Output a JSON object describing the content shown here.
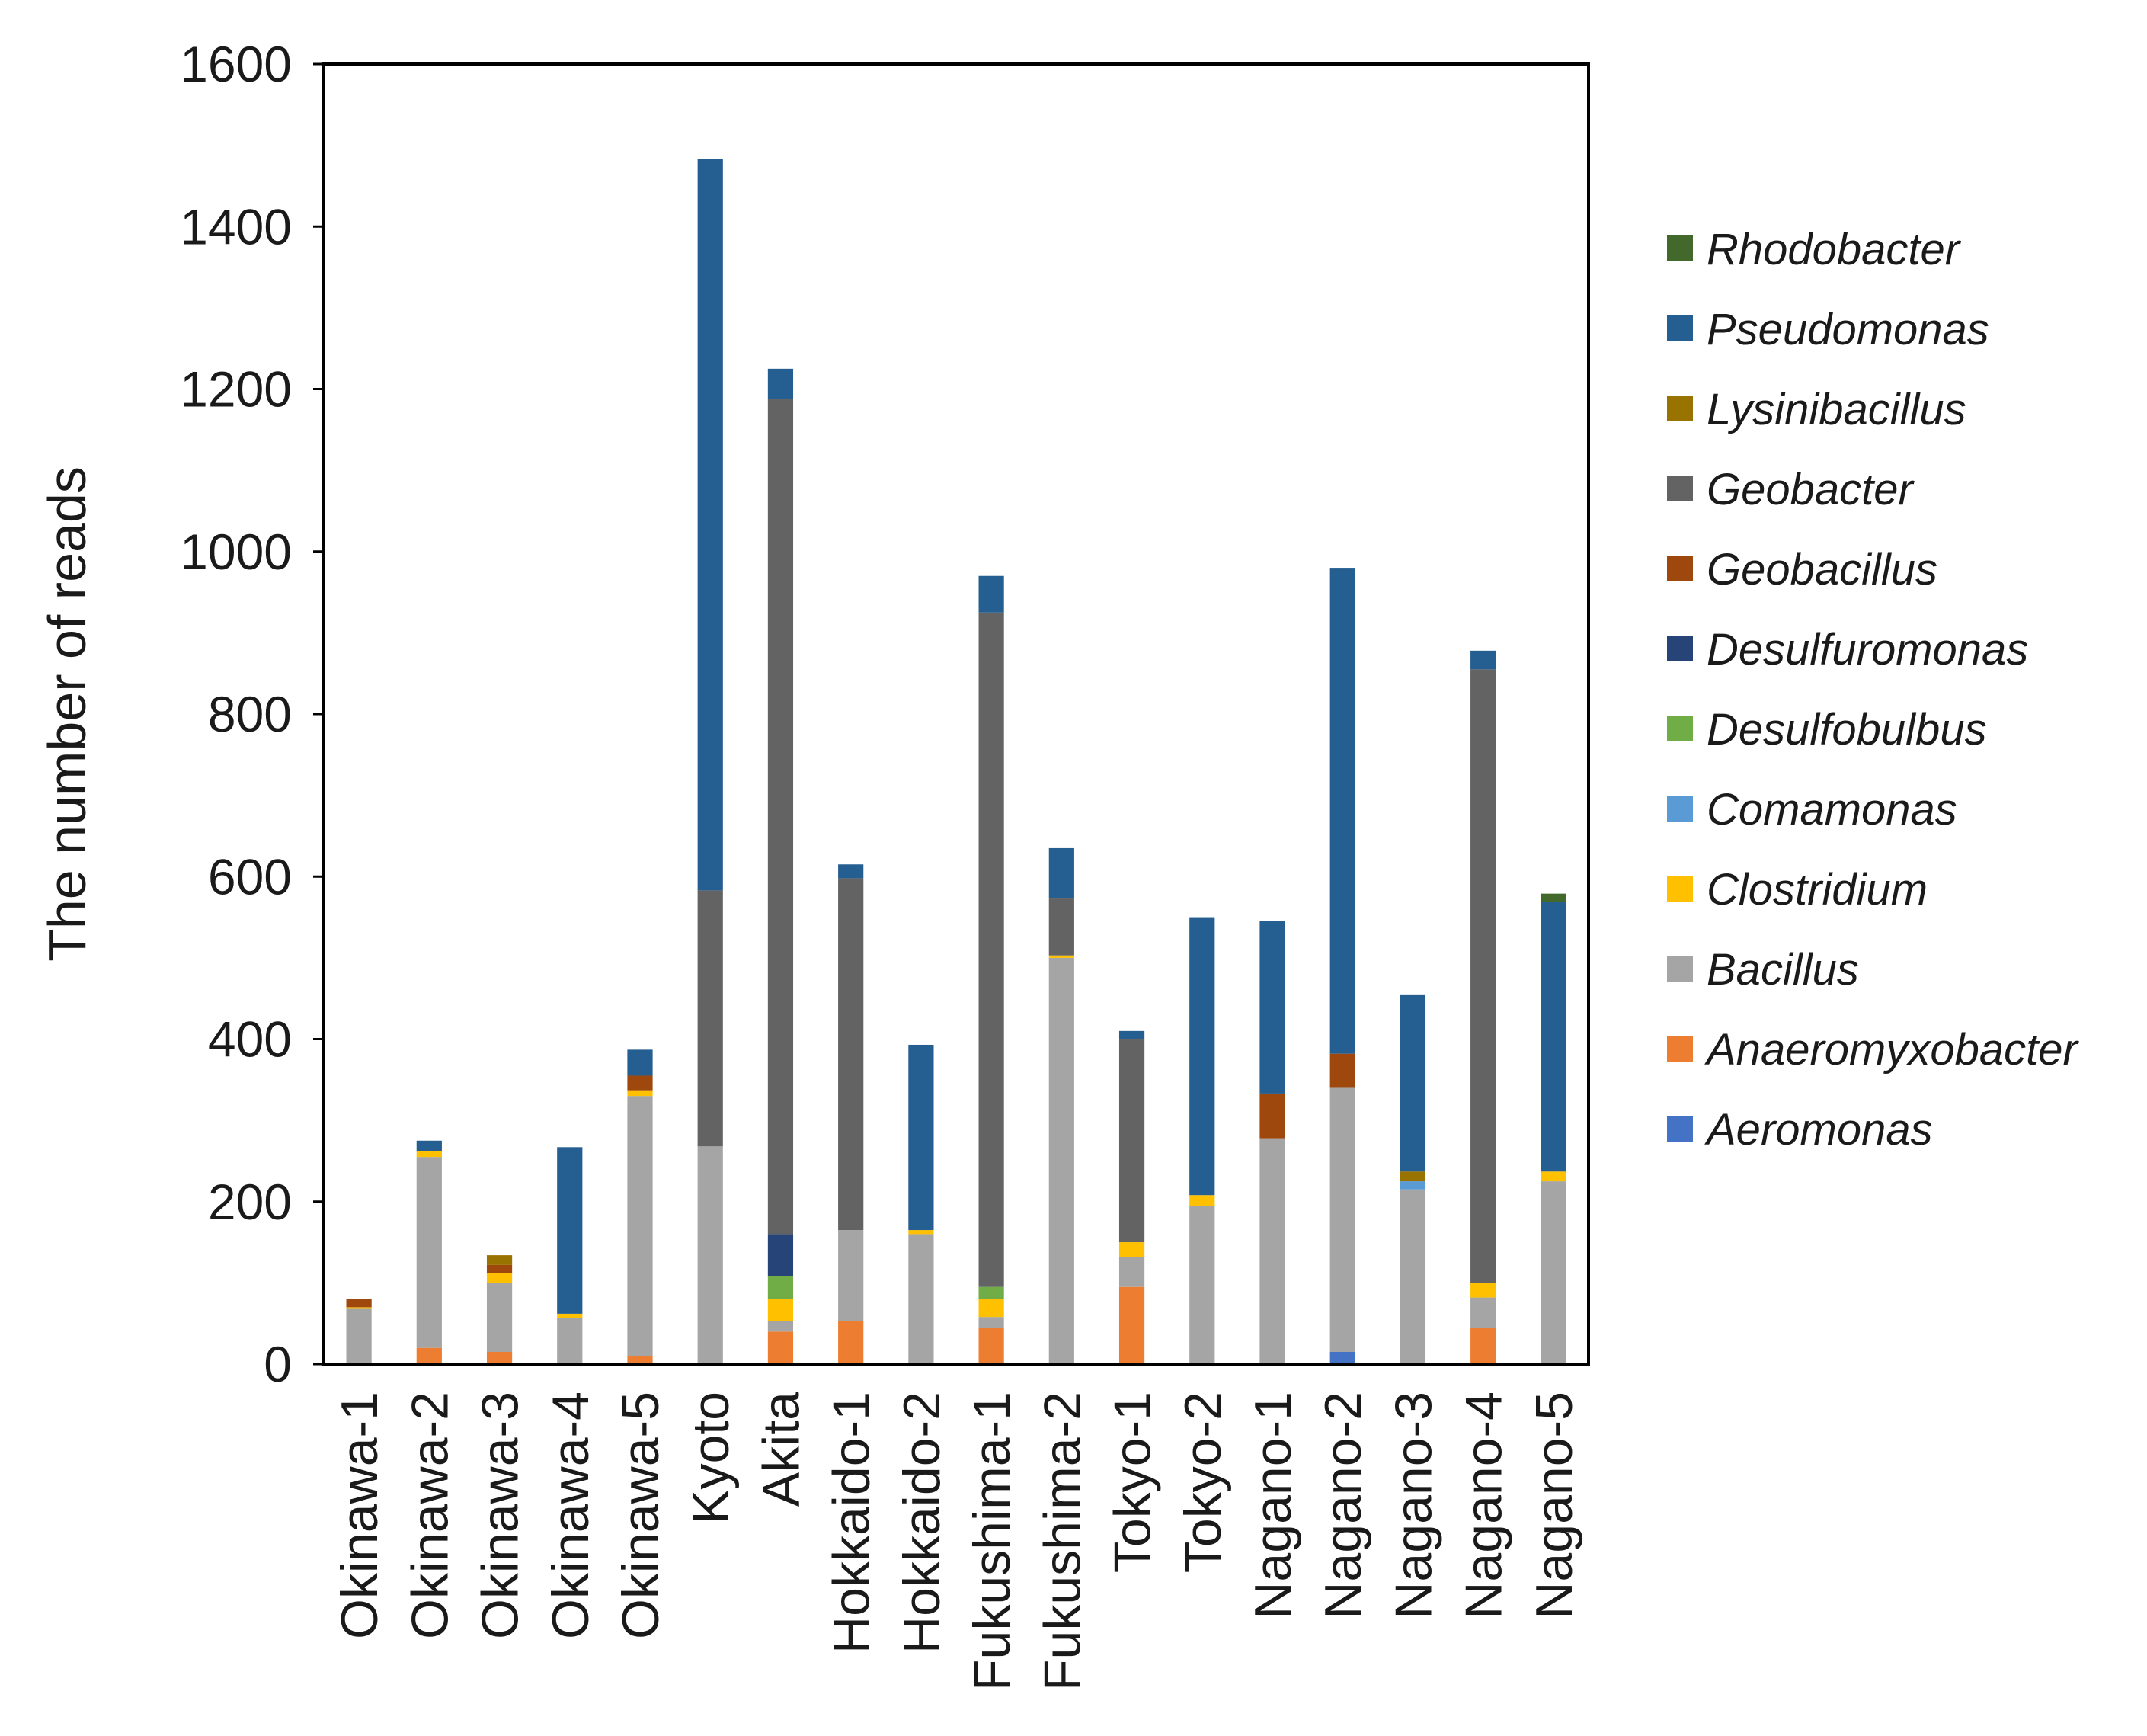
{
  "chart_data": {
    "type": "bar",
    "stacked": true,
    "title": "",
    "xlabel": "",
    "ylabel": "The number of reads",
    "ylim": [
      0,
      1600
    ],
    "yticks": [
      0,
      200,
      400,
      600,
      800,
      1000,
      1200,
      1400,
      1600
    ],
    "grid": false,
    "legend_position": "right",
    "categories": [
      "Okinawa-1",
      "Okinawa-2",
      "Okinawa-3",
      "Okinawa-4",
      "Okinawa-5",
      "Kyoto",
      "Akita",
      "Hokkaido-1",
      "Hokkaido-2",
      "Fukushima-1",
      "Fukushima-2",
      "Tokyo-1",
      "Tokyo-2",
      "Nagano-1",
      "Nagano-2",
      "Nagano-3",
      "Nagano-4",
      "Nagano-5"
    ],
    "series": [
      {
        "name": "Aeromonas",
        "color": "#4472c4",
        "values": [
          0,
          0,
          0,
          0,
          0,
          0,
          0,
          0,
          0,
          0,
          0,
          0,
          0,
          0,
          15,
          0,
          0,
          0
        ]
      },
      {
        "name": "Anaeromyxobacter",
        "color": "#ed7d31",
        "values": [
          0,
          20,
          15,
          0,
          10,
          0,
          40,
          53,
          0,
          45,
          0,
          95,
          0,
          0,
          0,
          0,
          45,
          0
        ]
      },
      {
        "name": "Bacillus",
        "color": "#a5a5a5",
        "values": [
          68,
          235,
          85,
          57,
          320,
          268,
          13,
          112,
          160,
          13,
          500,
          37,
          195,
          278,
          325,
          215,
          37,
          225
        ]
      },
      {
        "name": "Clostridium",
        "color": "#ffc000",
        "values": [
          2,
          7,
          12,
          5,
          7,
          0,
          27,
          0,
          5,
          22,
          3,
          18,
          13,
          0,
          0,
          0,
          18,
          12
        ]
      },
      {
        "name": "Comamonas",
        "color": "#5b9bd5",
        "values": [
          0,
          0,
          0,
          0,
          0,
          0,
          0,
          0,
          0,
          0,
          0,
          0,
          0,
          0,
          0,
          10,
          0,
          0
        ]
      },
      {
        "name": "Desulfobulbus",
        "color": "#70ad47",
        "values": [
          0,
          0,
          0,
          0,
          0,
          0,
          28,
          0,
          0,
          15,
          0,
          0,
          0,
          0,
          0,
          0,
          0,
          0
        ]
      },
      {
        "name": "Desulfuromonas",
        "color": "#264478",
        "values": [
          0,
          0,
          0,
          0,
          0,
          0,
          52,
          0,
          0,
          0,
          0,
          0,
          0,
          0,
          0,
          0,
          0,
          0
        ]
      },
      {
        "name": "Geobacillus",
        "color": "#9e480e",
        "values": [
          10,
          0,
          10,
          0,
          18,
          0,
          0,
          0,
          0,
          0,
          0,
          0,
          0,
          55,
          42,
          0,
          0,
          0
        ]
      },
      {
        "name": "Geobacter",
        "color": "#636363",
        "values": [
          0,
          0,
          0,
          0,
          0,
          315,
          1028,
          433,
          0,
          830,
          70,
          250,
          0,
          0,
          0,
          0,
          755,
          0
        ]
      },
      {
        "name": "Lysinibacillus",
        "color": "#997300",
        "values": [
          0,
          0,
          12,
          0,
          0,
          0,
          0,
          0,
          0,
          0,
          0,
          0,
          0,
          0,
          0,
          12,
          0,
          0
        ]
      },
      {
        "name": "Pseudomonas",
        "color": "#255e91",
        "values": [
          0,
          13,
          0,
          205,
          32,
          900,
          37,
          17,
          228,
          45,
          62,
          10,
          342,
          212,
          598,
          218,
          23,
          332
        ]
      },
      {
        "name": "Rhodobacter",
        "color": "#43682b",
        "values": [
          0,
          0,
          0,
          0,
          0,
          0,
          0,
          0,
          0,
          0,
          0,
          0,
          0,
          0,
          0,
          0,
          0,
          10
        ]
      }
    ],
    "legend_order": [
      "Rhodobacter",
      "Pseudomonas",
      "Lysinibacillus",
      "Geobacter",
      "Geobacillus",
      "Desulfuromonas",
      "Desulfobulbus",
      "Comamonas",
      "Clostridium",
      "Bacillus",
      "Anaeromyxobacter",
      "Aeromonas"
    ]
  }
}
